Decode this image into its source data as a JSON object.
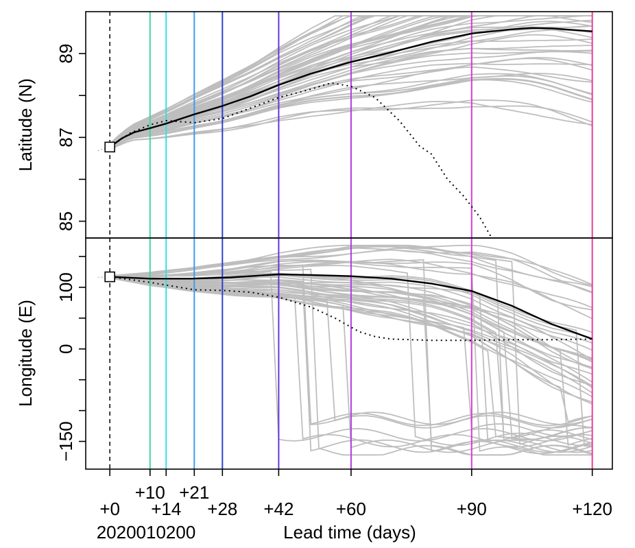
{
  "chart_data": [
    {
      "type": "line",
      "panel": "top",
      "ylabel": "Latitude (N)",
      "ylim": [
        84.6,
        90.0
      ],
      "yticks": [
        85,
        86,
        87,
        88,
        89
      ],
      "ytick_labels": [
        {
          "value": 85,
          "label": "85"
        },
        {
          "value": 87,
          "label": "87"
        },
        {
          "value": 89,
          "label": "89"
        }
      ],
      "start_point": {
        "x": 0,
        "y": 86.77
      },
      "observed_before": [
        {
          "x": -3,
          "y": 86.68
        },
        {
          "x": 0,
          "y": 86.77
        }
      ],
      "ensemble_mean": [
        {
          "x": 0,
          "y": 86.77
        },
        {
          "x": 3,
          "y": 86.98
        },
        {
          "x": 6,
          "y": 87.12
        },
        {
          "x": 10,
          "y": 87.22
        },
        {
          "x": 14,
          "y": 87.33
        },
        {
          "x": 21,
          "y": 87.55
        },
        {
          "x": 28,
          "y": 87.75
        },
        {
          "x": 35,
          "y": 87.98
        },
        {
          "x": 42,
          "y": 88.25
        },
        {
          "x": 50,
          "y": 88.52
        },
        {
          "x": 60,
          "y": 88.8
        },
        {
          "x": 70,
          "y": 89.03
        },
        {
          "x": 80,
          "y": 89.28
        },
        {
          "x": 90,
          "y": 89.48
        },
        {
          "x": 100,
          "y": 89.58
        },
        {
          "x": 105,
          "y": 89.61
        },
        {
          "x": 110,
          "y": 89.6
        },
        {
          "x": 120,
          "y": 89.53
        }
      ],
      "analysis_track": [
        {
          "x": 0,
          "y": 86.77
        },
        {
          "x": 5,
          "y": 87.1
        },
        {
          "x": 10,
          "y": 87.3
        },
        {
          "x": 14,
          "y": 87.4
        },
        {
          "x": 21,
          "y": 87.35
        },
        {
          "x": 28,
          "y": 87.45
        },
        {
          "x": 35,
          "y": 87.7
        },
        {
          "x": 42,
          "y": 87.95
        },
        {
          "x": 50,
          "y": 88.15
        },
        {
          "x": 55,
          "y": 88.3
        },
        {
          "x": 60,
          "y": 88.22
        },
        {
          "x": 66,
          "y": 87.95
        },
        {
          "x": 72,
          "y": 87.4
        },
        {
          "x": 77,
          "y": 86.8
        },
        {
          "x": 80,
          "y": 86.6
        },
        {
          "x": 84,
          "y": 86.0
        },
        {
          "x": 88,
          "y": 85.6
        },
        {
          "x": 92,
          "y": 85.1
        },
        {
          "x": 95,
          "y": 84.6
        }
      ],
      "members_count": 50
    },
    {
      "type": "line",
      "panel": "bottom",
      "ylabel": "Longitude (E)",
      "xlabel": "Lead time (days)",
      "ylim": [
        -195,
        180
      ],
      "yticks": [
        -150,
        -100,
        -50,
        0,
        50,
        100,
        150
      ],
      "ytick_labels": [
        {
          "value": -150,
          "label": "−150"
        },
        {
          "value": 0,
          "label": "0"
        },
        {
          "value": 100,
          "label": "100"
        }
      ],
      "start_point": {
        "x": 0,
        "y": 117
      },
      "observed_before": [
        {
          "x": -3,
          "y": 116
        },
        {
          "x": 0,
          "y": 117
        }
      ],
      "ensemble_mean": [
        {
          "x": 0,
          "y": 117
        },
        {
          "x": 10,
          "y": 114
        },
        {
          "x": 20,
          "y": 114
        },
        {
          "x": 30,
          "y": 116
        },
        {
          "x": 42,
          "y": 121
        },
        {
          "x": 50,
          "y": 120
        },
        {
          "x": 60,
          "y": 118
        },
        {
          "x": 70,
          "y": 114
        },
        {
          "x": 80,
          "y": 106
        },
        {
          "x": 90,
          "y": 94
        },
        {
          "x": 100,
          "y": 70
        },
        {
          "x": 110,
          "y": 40
        },
        {
          "x": 120,
          "y": 16
        }
      ],
      "analysis_track": [
        {
          "x": 0,
          "y": 117
        },
        {
          "x": 10,
          "y": 108
        },
        {
          "x": 21,
          "y": 96
        },
        {
          "x": 28,
          "y": 95
        },
        {
          "x": 35,
          "y": 92
        },
        {
          "x": 42,
          "y": 84
        },
        {
          "x": 50,
          "y": 68
        },
        {
          "x": 56,
          "y": 50
        },
        {
          "x": 62,
          "y": 28
        },
        {
          "x": 66,
          "y": 20
        },
        {
          "x": 70,
          "y": 16
        },
        {
          "x": 80,
          "y": 14
        },
        {
          "x": 90,
          "y": 14
        },
        {
          "x": 100,
          "y": 15
        },
        {
          "x": 110,
          "y": 15
        },
        {
          "x": 120,
          "y": 16
        }
      ],
      "members_count": 50
    }
  ],
  "x_axis": {
    "xlim": [
      -6,
      125
    ],
    "ticks": [
      0,
      10,
      14,
      21,
      28,
      42,
      60,
      90,
      120
    ],
    "tick_labels_row1": [
      {
        "x": 0,
        "label": "+0"
      },
      {
        "x": 14,
        "label": "+14"
      },
      {
        "x": 28,
        "label": "+28"
      },
      {
        "x": 42,
        "label": "+42"
      },
      {
        "x": 60,
        "label": "+60"
      },
      {
        "x": 90,
        "label": "+90"
      },
      {
        "x": 120,
        "label": "+120"
      }
    ],
    "tick_labels_row2": [
      {
        "x": 10,
        "label": "+10"
      },
      {
        "x": 21,
        "label": "+21"
      }
    ],
    "date_label": "2020010200",
    "xlabel": "Lead time (days)"
  },
  "vlines": [
    {
      "x": 0,
      "color": "#000000",
      "dashed": true
    },
    {
      "x": 10,
      "color": "#3fd6a8",
      "dashed": false
    },
    {
      "x": 14,
      "color": "#33e0e6",
      "dashed": false
    },
    {
      "x": 21,
      "color": "#3b9cf0",
      "dashed": false
    },
    {
      "x": 28,
      "color": "#2c3fcf",
      "dashed": false
    },
    {
      "x": 42,
      "color": "#6a35d8",
      "dashed": false
    },
    {
      "x": 60,
      "color": "#b23ce0",
      "dashed": false
    },
    {
      "x": 90,
      "color": "#d83ad8",
      "dashed": false
    },
    {
      "x": 120,
      "color": "#e83c98",
      "dashed": false
    }
  ],
  "colors": {
    "members": "#bebebe",
    "mean": "#000000",
    "analysis": "#000000",
    "observed_before": "#bebebe"
  }
}
